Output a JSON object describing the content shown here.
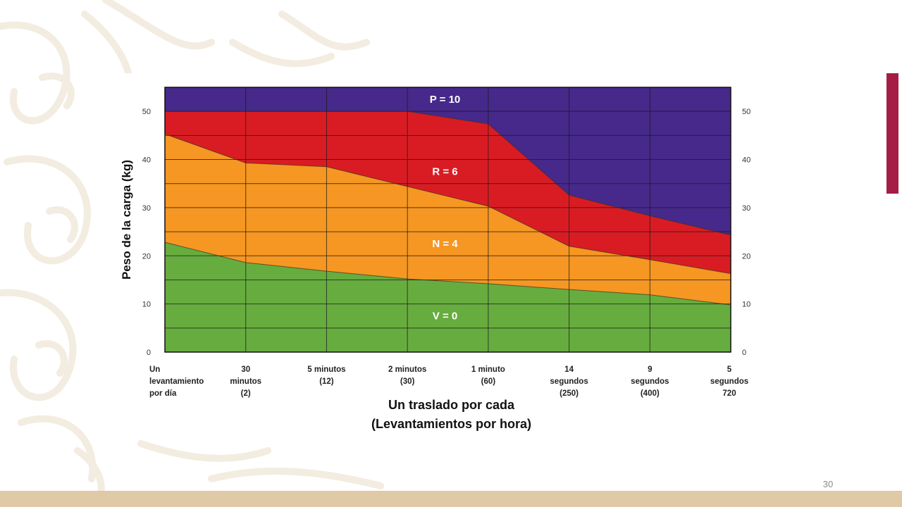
{
  "slide": {
    "page_number": "30",
    "accent_color": "#a51d45",
    "footer_color": "#dfc9a6",
    "pattern_color": "#f3ece0"
  },
  "chart_data": {
    "type": "area",
    "xlabel_lines": [
      "Un traslado por cada",
      "(Levantamientos por hora)"
    ],
    "ylabel": "Peso de la carga (kg)",
    "ylim": [
      0,
      55
    ],
    "yticks": [
      0,
      10,
      20,
      30,
      40,
      50
    ],
    "categories": [
      [
        "Un",
        "levantamiento",
        "por día"
      ],
      [
        "30",
        "minutos",
        "(2)"
      ],
      [
        "5 minutos",
        "(12)"
      ],
      [
        "2 minutos",
        "(30)"
      ],
      [
        "1 minuto",
        "(60)"
      ],
      [
        "14",
        "segundos",
        "(250)"
      ],
      [
        "9",
        "segundos",
        "(400)"
      ],
      [
        "5",
        "segundos",
        "720"
      ]
    ],
    "boundaries": [
      {
        "name": "V/N",
        "values": [
          22.8,
          18.6,
          16.8,
          15.2,
          14.2,
          13.0,
          11.9,
          9.8
        ]
      },
      {
        "name": "N/R",
        "values": [
          45.3,
          39.3,
          38.5,
          34.4,
          30.3,
          22.0,
          19.2,
          16.3
        ]
      },
      {
        "name": "R/P",
        "values": [
          50.0,
          50.0,
          50.0,
          50.0,
          47.4,
          32.6,
          28.3,
          24.3
        ]
      }
    ],
    "zones": [
      {
        "label": "V = 0",
        "color": "#67ac3f",
        "label_y": 7.5
      },
      {
        "label": "N = 4",
        "color": "#f59722",
        "label_y": 22.5
      },
      {
        "label": "R = 6",
        "color": "#d91c23",
        "label_y": 37.5
      },
      {
        "label": "P = 10",
        "color": "#46298a",
        "label_y": 52.5
      }
    ],
    "grid": true
  }
}
